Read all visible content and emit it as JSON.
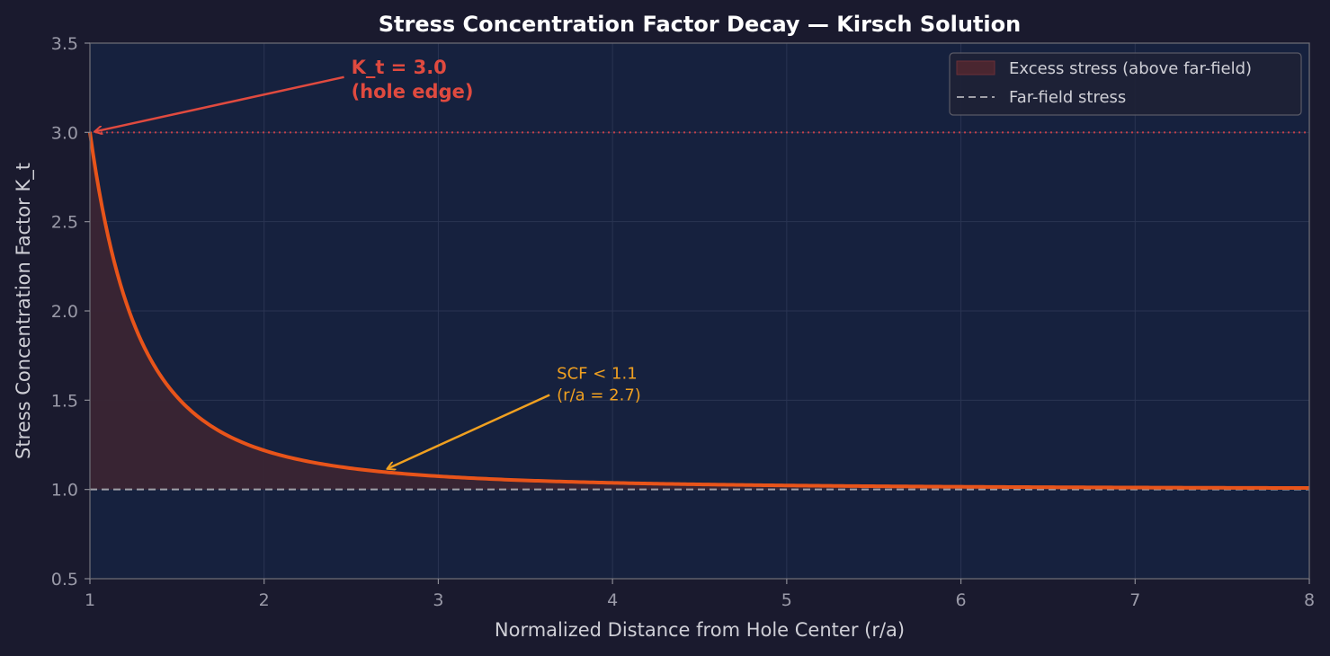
{
  "chart_data": {
    "type": "line",
    "title": "Stress Concentration Factor Decay — Kirsch Solution",
    "xlabel": "Normalized Distance from Hole Center (r/a)",
    "ylabel": "Stress Concentration Factor K_t",
    "xlim": [
      1,
      8
    ],
    "ylim": [
      0.5,
      3.5
    ],
    "xticks": [
      "1",
      "2",
      "3",
      "4",
      "5",
      "6",
      "7",
      "8"
    ],
    "yticks": [
      "0.5",
      "1.0",
      "1.5",
      "2.0",
      "2.5",
      "3.0",
      "3.5"
    ],
    "grid": true,
    "legend_position": "top-right",
    "series": [
      {
        "formula": "1 + 0.5/x^2 + 1.5/x^4",
        "x": [
          1.0,
          1.1,
          1.2,
          1.3,
          1.4,
          1.5,
          1.6,
          1.8,
          2.0,
          2.25,
          2.5,
          2.7,
          3.0,
          3.5,
          4.0,
          4.5,
          5.0,
          6.0,
          7.0,
          8.0
        ],
        "y": [
          3.0,
          2.437,
          2.071,
          1.821,
          1.646,
          1.519,
          1.424,
          1.383,
          1.219,
          1.158,
          1.118,
          1.097,
          1.074,
          1.065,
          1.037,
          1.025,
          1.022,
          1.015,
          1.011,
          1.008
        ],
        "color": "#e8541a"
      }
    ],
    "legend": [
      {
        "label": "Excess stress (above far-field)",
        "kind": "fill"
      },
      {
        "label": "Far-field stress",
        "kind": "dashed"
      }
    ],
    "reference_lines": [
      {
        "y": 1.0,
        "style": "dashed",
        "color": "#a0a0a8"
      },
      {
        "y": 3.0,
        "style": "dotted",
        "color": "#c0404a"
      }
    ],
    "annotations": [
      {
        "lines": [
          "K_t = 3.0",
          "(hole edge)"
        ],
        "x": 2.5,
        "y": 3.33,
        "target_x": 1.0,
        "target_y": 3.0,
        "color": "#e04a3f"
      },
      {
        "lines": [
          "SCF < 1.1",
          "(r/a = 2.7)"
        ],
        "x": 3.68,
        "y": 1.62,
        "target_x": 2.7,
        "target_y": 1.097,
        "color": "#f0a020"
      }
    ]
  }
}
